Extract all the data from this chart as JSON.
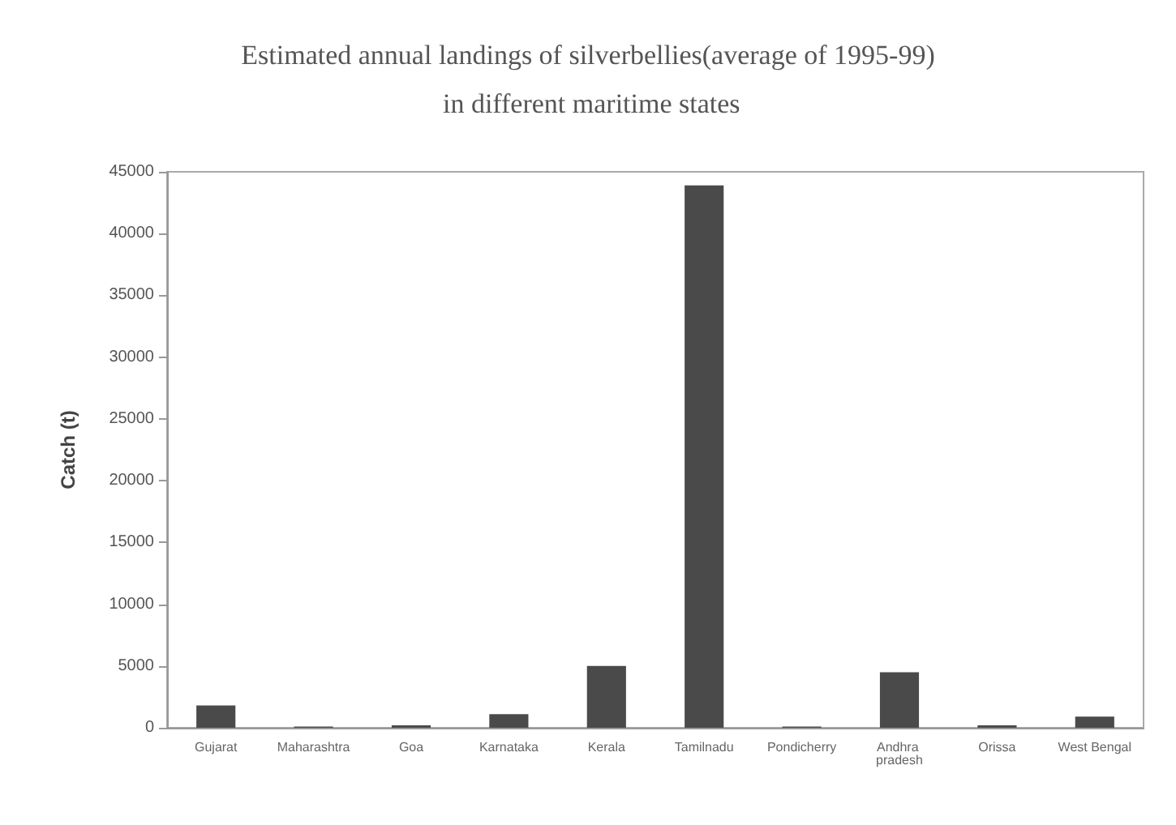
{
  "chart_data": {
    "type": "bar",
    "title": "Estimated annual landings of silverbellies(average of 1995-99) in different maritime states",
    "ylabel": "Catch (t)",
    "categories": [
      "Gujarat",
      "Maharashtra",
      "Goa",
      "Karnataka",
      "Kerala",
      "Tamilnadu",
      "Pondicherry",
      "Andhra pradesh",
      "Orissa",
      "West Bengal"
    ],
    "values": [
      1800,
      100,
      200,
      1100,
      5000,
      43900,
      100,
      4500,
      200,
      900
    ],
    "color": "#4a4a4a",
    "ylim": [
      0,
      45000
    ],
    "yticks": [
      0,
      5000,
      10000,
      15000,
      20000,
      25000,
      30000,
      35000,
      40000,
      45000
    ],
    "grid": false
  }
}
